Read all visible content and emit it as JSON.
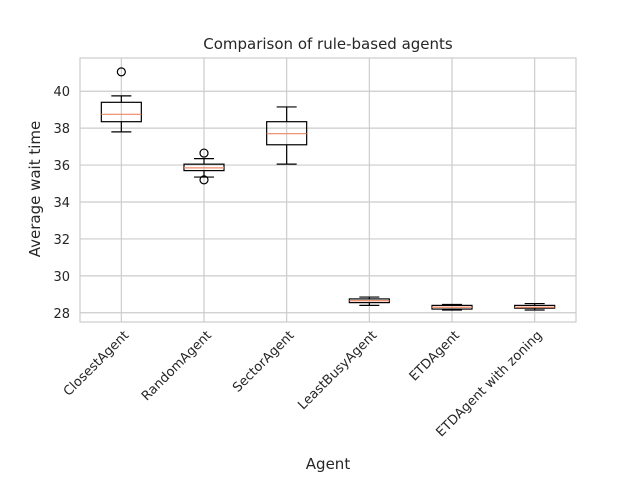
{
  "chart_data": {
    "type": "box",
    "title": "Comparison of rule-based agents",
    "xlabel": "Agent",
    "ylabel": "Average wait time",
    "ylim": [
      27.5,
      41.8
    ],
    "yticks": [
      28,
      30,
      32,
      34,
      36,
      38,
      40
    ],
    "grid": true,
    "categories": [
      "ClosestAgent",
      "RandomAgent",
      "SectorAgent",
      "LeastBusyAgent",
      "ETDAgent",
      "ETDAgent with zoning"
    ],
    "boxes": [
      {
        "whisker_low": 37.8,
        "q1": 38.35,
        "median": 38.75,
        "q3": 39.4,
        "whisker_high": 39.75,
        "outliers": [
          41.05
        ]
      },
      {
        "whisker_low": 35.35,
        "q1": 35.7,
        "median": 35.85,
        "q3": 36.05,
        "whisker_high": 36.35,
        "outliers": [
          36.65,
          35.2
        ]
      },
      {
        "whisker_low": 36.05,
        "q1": 37.1,
        "median": 37.7,
        "q3": 38.35,
        "whisker_high": 39.15,
        "outliers": []
      },
      {
        "whisker_low": 28.4,
        "q1": 28.55,
        "median": 28.65,
        "q3": 28.75,
        "whisker_high": 28.85,
        "outliers": []
      },
      {
        "whisker_low": 28.15,
        "q1": 28.2,
        "median": 28.3,
        "q3": 28.4,
        "whisker_high": 28.45,
        "outliers": []
      },
      {
        "whisker_low": 28.15,
        "q1": 28.25,
        "median": 28.3,
        "q3": 28.4,
        "whisker_high": 28.5,
        "outliers": []
      }
    ],
    "colors": {
      "box": "#000000",
      "median": "#ee8866",
      "grid": "#cccccc",
      "axes": "#cccccc",
      "text": "#262626"
    }
  }
}
